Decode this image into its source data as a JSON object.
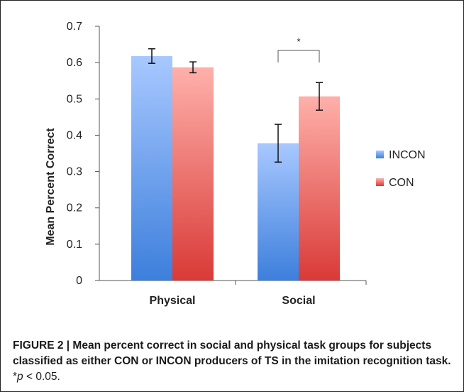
{
  "chart_data": {
    "type": "bar",
    "categories": [
      "Physical",
      "Social"
    ],
    "series": [
      {
        "name": "INCON",
        "values": [
          0.618,
          0.378
        ],
        "errors": [
          0.02,
          0.052
        ]
      },
      {
        "name": "CON",
        "values": [
          0.587,
          0.507
        ],
        "errors": [
          0.015,
          0.038
        ]
      }
    ],
    "ylabel": "Mean Percent Correct",
    "ylim": [
      0,
      0.7
    ],
    "yticks": [
      "0",
      "0.1",
      "0.2",
      "0.3",
      "0.4",
      "0.5",
      "0.6",
      "0.7"
    ],
    "legend_position": "right",
    "significance": {
      "category": "Social",
      "label": "*"
    },
    "colors": {
      "INCON_top": "#a8c8ff",
      "INCON_bottom": "#3d7fdc",
      "CON_top": "#ffb0aa",
      "CON_bottom": "#d93a37"
    }
  },
  "caption": {
    "lead": "FIGURE 2 | Mean percent correct in social and physical task groups for subjects classified as either CON or INCON producers of TS in the imitation recognition task.",
    "tail_symbol": "*",
    "tail_p": "p",
    "tail_rest": " < 0.05."
  }
}
